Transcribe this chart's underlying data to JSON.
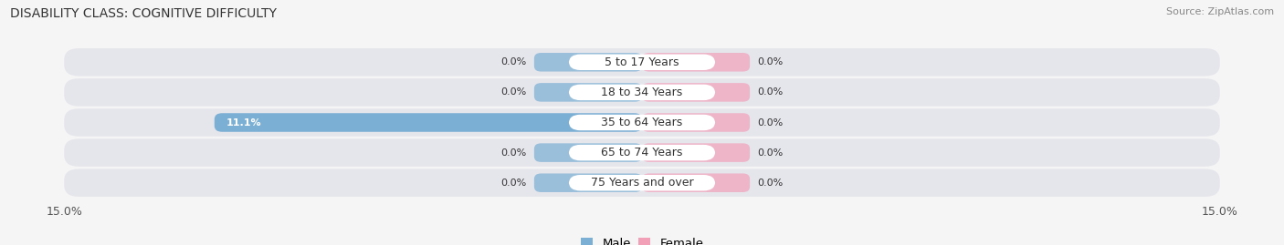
{
  "title": "DISABILITY CLASS: COGNITIVE DIFFICULTY",
  "source": "Source: ZipAtlas.com",
  "categories": [
    "5 to 17 Years",
    "18 to 34 Years",
    "35 to 64 Years",
    "65 to 74 Years",
    "75 Years and over"
  ],
  "male_values": [
    0.0,
    0.0,
    11.1,
    0.0,
    0.0
  ],
  "female_values": [
    0.0,
    0.0,
    0.0,
    0.0,
    0.0
  ],
  "xlim": 15.0,
  "male_color": "#7bafd4",
  "female_color": "#f2a0b8",
  "row_bg_color": "#e8e8ee",
  "label_color": "#333333",
  "title_color": "#333333",
  "axis_label_color": "#555555",
  "background_color": "#f5f5f5",
  "bar_height": 0.62,
  "label_fontsize": 9,
  "title_fontsize": 10,
  "source_fontsize": 8,
  "cat_label_fontsize": 9,
  "value_label_fontsize": 8
}
